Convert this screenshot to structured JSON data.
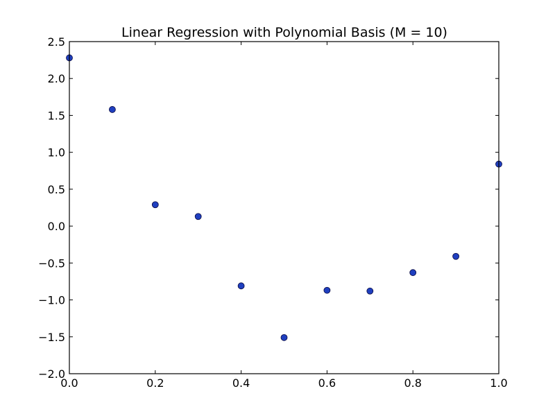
{
  "chart_data": {
    "type": "scatter",
    "title": "Linear Regression with Polynomial Basis (M = 10)",
    "xlabel": "",
    "ylabel": "",
    "xlim": [
      0.0,
      1.0
    ],
    "ylim": [
      -2.0,
      2.5
    ],
    "x_ticks": [
      0.0,
      0.2,
      0.4,
      0.6,
      0.8,
      1.0
    ],
    "x_tick_labels": [
      "0.0",
      "0.2",
      "0.4",
      "0.6",
      "0.8",
      "1.0"
    ],
    "y_ticks": [
      -2.0,
      -1.5,
      -1.0,
      -0.5,
      0.0,
      0.5,
      1.0,
      1.5,
      2.0,
      2.5
    ],
    "y_tick_labels": [
      "−2.0",
      "−1.5",
      "−1.0",
      "−0.5",
      "0.0",
      "0.5",
      "1.0",
      "1.5",
      "2.0",
      "2.5"
    ],
    "grid": false,
    "series": [
      {
        "marker": "circle",
        "color": "#1f3fbf",
        "edge_color": "#0a0a40",
        "x": [
          0.0,
          0.1,
          0.2,
          0.3,
          0.4,
          0.5,
          0.6,
          0.7,
          0.8,
          0.9,
          1.0
        ],
        "y": [
          2.28,
          1.58,
          0.29,
          0.13,
          -0.81,
          -1.51,
          -0.87,
          -0.88,
          -0.63,
          -0.41,
          0.84
        ]
      }
    ]
  }
}
